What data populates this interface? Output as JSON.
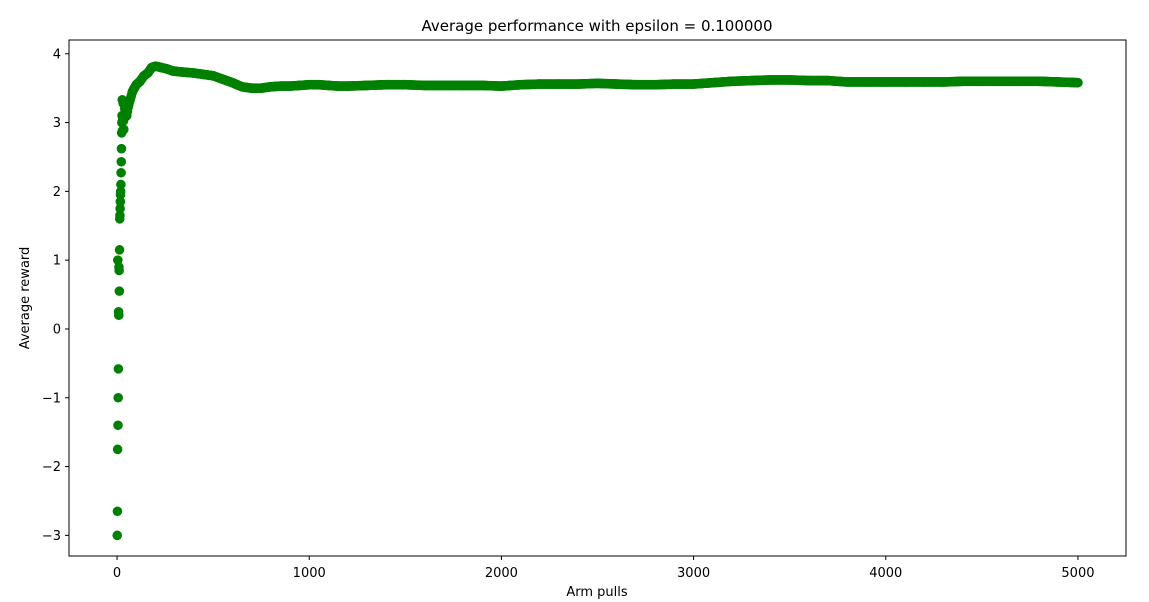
{
  "chart_data": {
    "type": "scatter",
    "title": "Average performance with epsilon = 0.100000",
    "xlabel": "Arm pulls",
    "ylabel": "Average reward",
    "xlim": [
      -250,
      5250
    ],
    "ylim": [
      -3.3,
      4.2
    ],
    "xticks": [
      0,
      1000,
      2000,
      3000,
      4000,
      5000
    ],
    "xtick_labels": [
      "0",
      "1000",
      "2000",
      "3000",
      "4000",
      "5000"
    ],
    "yticks": [
      -3,
      -2,
      -1,
      0,
      1,
      2,
      3,
      4
    ],
    "ytick_labels": [
      "−3",
      "−2",
      "−1",
      "0",
      "1",
      "2",
      "3",
      "4"
    ],
    "grid": false,
    "marker_color": "#008000",
    "series": [
      {
        "x": [
          1,
          2,
          3,
          4,
          5,
          6,
          7,
          8,
          9,
          10,
          11,
          12,
          13,
          14,
          15,
          16,
          17,
          18,
          19,
          20,
          21,
          22,
          23,
          24,
          25,
          26,
          27,
          28,
          30,
          32,
          35,
          40,
          45,
          50,
          60,
          70,
          80,
          90,
          100,
          120,
          140,
          160,
          180,
          200,
          230,
          260,
          290,
          320,
          360,
          400,
          450,
          500,
          550,
          600,
          650,
          700,
          750,
          800,
          850,
          900,
          950,
          1000,
          1050,
          1100,
          1150,
          1200,
          1300,
          1400,
          1500,
          1600,
          1700,
          1800,
          1900,
          2000,
          2100,
          2200,
          2300,
          2400,
          2500,
          2600,
          2700,
          2800,
          2900,
          3000,
          3100,
          3200,
          3300,
          3400,
          3500,
          3600,
          3700,
          3800,
          3900,
          4000,
          4100,
          4200,
          4300,
          4400,
          4500,
          4600,
          4700,
          4800,
          4900,
          5000
        ],
        "y": [
          -3.0,
          -2.65,
          -1.75,
          1.0,
          -1.4,
          -1.0,
          -0.58,
          0.25,
          0.2,
          0.9,
          0.85,
          0.55,
          1.15,
          1.6,
          1.65,
          1.75,
          1.85,
          1.95,
          2.0,
          2.1,
          2.27,
          2.43,
          2.62,
          2.85,
          3.0,
          3.1,
          3.33,
          2.88,
          3.05,
          3.28,
          2.9,
          3.2,
          3.3,
          3.1,
          3.25,
          3.35,
          3.45,
          3.5,
          3.55,
          3.6,
          3.68,
          3.72,
          3.8,
          3.82,
          3.8,
          3.78,
          3.75,
          3.74,
          3.73,
          3.72,
          3.7,
          3.68,
          3.63,
          3.58,
          3.52,
          3.5,
          3.5,
          3.52,
          3.53,
          3.53,
          3.54,
          3.55,
          3.55,
          3.54,
          3.53,
          3.53,
          3.54,
          3.55,
          3.55,
          3.54,
          3.54,
          3.54,
          3.54,
          3.53,
          3.55,
          3.56,
          3.56,
          3.56,
          3.57,
          3.56,
          3.55,
          3.55,
          3.56,
          3.56,
          3.58,
          3.6,
          3.61,
          3.62,
          3.62,
          3.61,
          3.61,
          3.59,
          3.59,
          3.59,
          3.59,
          3.59,
          3.59,
          3.6,
          3.6,
          3.6,
          3.6,
          3.6,
          3.59,
          3.58
        ]
      }
    ]
  }
}
